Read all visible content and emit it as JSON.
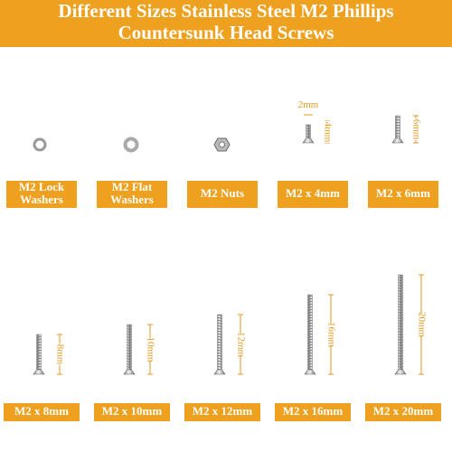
{
  "header": {
    "title": [
      "Different Sizes Stainless Steel M2 Phillips",
      "Countersunk Head Screws"
    ]
  },
  "items": [
    {
      "label": [
        "M2 Lock",
        "Washers"
      ]
    },
    {
      "label": [
        "M2 Flat",
        "Washers"
      ]
    },
    {
      "label": [
        "M2 Nuts"
      ]
    },
    {
      "label": [
        "M2 x 4mm"
      ],
      "width_dimension": "2mm",
      "length_dimension": "4mm"
    },
    {
      "label": [
        "M2 x 6mm"
      ],
      "length_dimension": "6mm"
    },
    {
      "label": [
        "M2 x 8mm"
      ],
      "length_dimension": "8mm"
    },
    {
      "label": [
        "M2 x 10mm"
      ],
      "length_dimension": "10mm"
    },
    {
      "label": [
        "M2 x 12mm"
      ],
      "length_dimension": "12mm"
    },
    {
      "label": [
        "M2 x 16mm"
      ],
      "length_dimension": "16mm"
    },
    {
      "label": [
        "M2 x 20mm"
      ],
      "length_dimension": "20mm"
    }
  ]
}
